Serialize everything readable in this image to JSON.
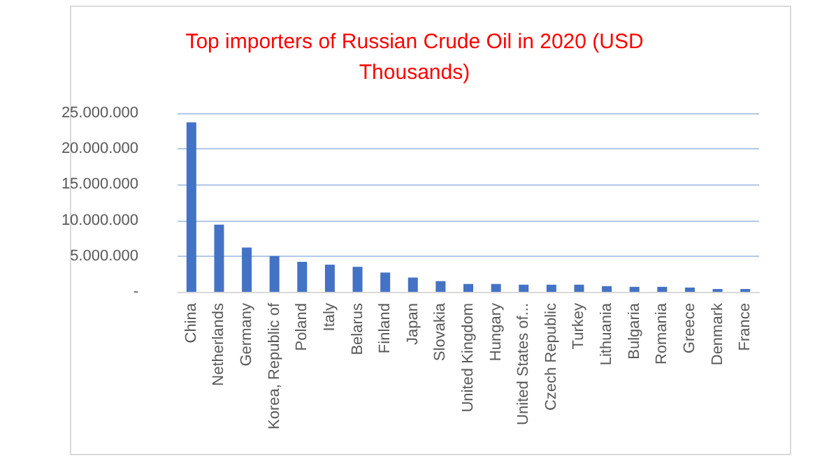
{
  "chart_data": {
    "type": "bar",
    "title": "Top importers of Russian Crude Oil in 2020 (USD\nThousands)",
    "categories": [
      "China",
      "Netherlands",
      "Germany",
      "Korea, Republic of",
      "Poland",
      "Italy",
      "Belarus",
      "Finland",
      "Japan",
      "Slovakia",
      "United Kingdom",
      "Hungary",
      "United States of...",
      "Czech Republic",
      "Turkey",
      "Lithuania",
      "Bulgaria",
      "Romania",
      "Greece",
      "Denmark",
      "France"
    ],
    "values": [
      23700000,
      9400000,
      6200000,
      5000000,
      4200000,
      3800000,
      3500000,
      2700000,
      2000000,
      1500000,
      1100000,
      1100000,
      1000000,
      1000000,
      1000000,
      800000,
      700000,
      700000,
      600000,
      400000,
      400000
    ],
    "color": "#4472c4",
    "ylim": [
      0,
      25000000
    ],
    "yticks": [
      {
        "value": 0,
        "label": "-"
      },
      {
        "value": 5000000,
        "label": "5.000.000"
      },
      {
        "value": 10000000,
        "label": "10.000.000"
      },
      {
        "value": 15000000,
        "label": "15.000.000"
      },
      {
        "value": 20000000,
        "label": "20.000.000"
      },
      {
        "value": 25000000,
        "label": "25.000.000"
      }
    ],
    "grid": "y"
  }
}
